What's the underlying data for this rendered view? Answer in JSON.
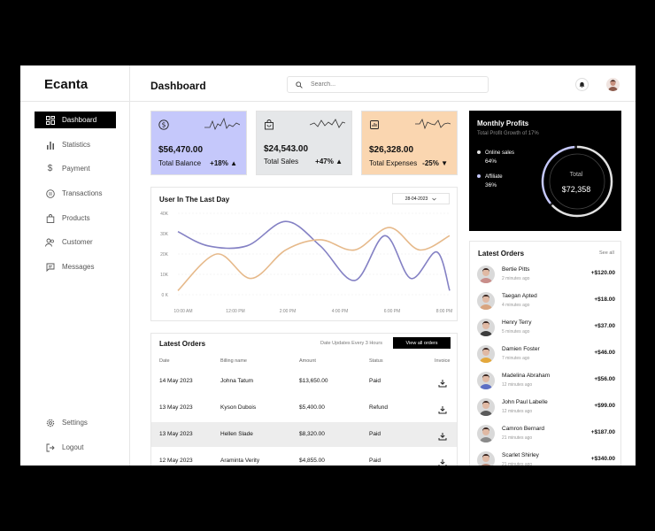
{
  "app": {
    "logo": "Ecanta",
    "page_title": "Dashboard"
  },
  "search": {
    "placeholder": "Search..."
  },
  "sidebar": {
    "items": [
      {
        "label": "Dashboard",
        "icon": "grid-icon",
        "active": true
      },
      {
        "label": "Statistics",
        "icon": "bar-chart-icon"
      },
      {
        "label": "Payment",
        "icon": "dollar-icon"
      },
      {
        "label": "Transactions",
        "icon": "transactions-icon"
      },
      {
        "label": "Products",
        "icon": "shopping-bag-icon"
      },
      {
        "label": "Customer",
        "icon": "users-icon"
      },
      {
        "label": "Messages",
        "icon": "message-icon"
      }
    ],
    "bottom": [
      {
        "label": "Settings",
        "icon": "gear-icon"
      },
      {
        "label": "Logout",
        "icon": "logout-icon"
      }
    ]
  },
  "cards": [
    {
      "amount": "$56,470.00",
      "label": "Total Balance",
      "change": "+18%",
      "direction": "up",
      "icon": "dollar-circle-icon",
      "color": "#c5c8fb"
    },
    {
      "amount": "$24,543.00",
      "label": "Total Sales",
      "change": "+47%",
      "direction": "up",
      "icon": "shopping-bag-icon",
      "color": "#e5e7e9"
    },
    {
      "amount": "$26,328.00",
      "label": "Total Expenses",
      "change": "-25%",
      "direction": "down",
      "icon": "receipt-icon",
      "color": "#fad6b0"
    }
  ],
  "chart_card": {
    "title": "User In The Last Day",
    "date": "28-04-2023"
  },
  "chart_data": {
    "type": "line",
    "x": [
      "10:00 AM",
      "12:00 PM",
      "2:00 PM",
      "4:00 PM",
      "6:00 PM",
      "8:00 PM"
    ],
    "xlabel": "",
    "ylabel": "",
    "yticks": [
      "0 K",
      "10K",
      "20K",
      "30K",
      "40K"
    ],
    "ylim": [
      0,
      40000
    ],
    "grid": true,
    "series": [
      {
        "color": "#8481c4",
        "points": [
          [
            0,
            31000
          ],
          [
            0.7,
            24000
          ],
          [
            1.6,
            24000
          ],
          [
            2.5,
            36000
          ],
          [
            3.3,
            24000
          ],
          [
            4.1,
            7000
          ],
          [
            4.8,
            29000
          ],
          [
            5.4,
            8000
          ],
          [
            6.0,
            21000
          ],
          [
            6.3,
            2000
          ]
        ]
      },
      {
        "color": "#e6b98a",
        "points": [
          [
            0,
            2000
          ],
          [
            0.9,
            20000
          ],
          [
            1.7,
            8000
          ],
          [
            2.5,
            22000
          ],
          [
            3.3,
            27000
          ],
          [
            4.1,
            22000
          ],
          [
            4.9,
            33000
          ],
          [
            5.6,
            22000
          ],
          [
            6.3,
            29000
          ]
        ]
      }
    ]
  },
  "orders": {
    "title": "Latest Orders",
    "note": "Date Updates Every 3 Hours",
    "view_all": "View all orders",
    "headers": [
      "Date",
      "Billing name",
      "Amount",
      "Status",
      "Invoice"
    ],
    "rows": [
      {
        "date": "14 May 2023",
        "name": "Johna Tatum",
        "amount": "$13,650.00",
        "status": "Paid"
      },
      {
        "date": "13 May 2023",
        "name": "Kyson Dubois",
        "amount": "$5,400.00",
        "status": "Refund"
      },
      {
        "date": "13 May 2023",
        "name": "Hellen Slade",
        "amount": "$8,320.00",
        "status": "Paid"
      },
      {
        "date": "12 May 2023",
        "name": "Araminta Verity",
        "amount": "$4,855.00",
        "status": "Paid"
      }
    ]
  },
  "profit": {
    "title": "Monthly Profits",
    "subtitle": "Total Profit Growth of 17%",
    "legend": [
      {
        "label": "Online sales",
        "value": "64%",
        "color": "#e2e2e2",
        "fraction": 0.64
      },
      {
        "label": "Affiliate",
        "value": "36%",
        "color": "#c5c8fb",
        "fraction": 0.36
      }
    ],
    "total_label": "Total",
    "total_value": "$72,358"
  },
  "latest": {
    "title": "Latest Orders",
    "see_all": "See all",
    "items": [
      {
        "name": "Bertie Pitts",
        "time": "2 minutes ago",
        "amount": "+$120.00",
        "color": "#c98e8a"
      },
      {
        "name": "Taegan Apted",
        "time": "4 minutes ago",
        "amount": "+$18.00",
        "color": "#d8a47f"
      },
      {
        "name": "Henry Terry",
        "time": "5 minutes ago",
        "amount": "+$37.00",
        "color": "#3c3c3c"
      },
      {
        "name": "Damien Foster",
        "time": "7 minutes ago",
        "amount": "+$46.00",
        "color": "#e4a83c"
      },
      {
        "name": "Madelina Abraham",
        "time": "12 minutes ago",
        "amount": "+$56.00",
        "color": "#5d6fc4"
      },
      {
        "name": "John Paul Labelle",
        "time": "12 minutes ago",
        "amount": "+$99.00",
        "color": "#5a5a5a"
      },
      {
        "name": "Camron Bernard",
        "time": "21 minutes ago",
        "amount": "+$187.00",
        "color": "#8a8a8a"
      },
      {
        "name": "Scarlet Shirley",
        "time": "21 minutes ago",
        "amount": "+$340.00",
        "color": "#b88a78"
      }
    ]
  }
}
